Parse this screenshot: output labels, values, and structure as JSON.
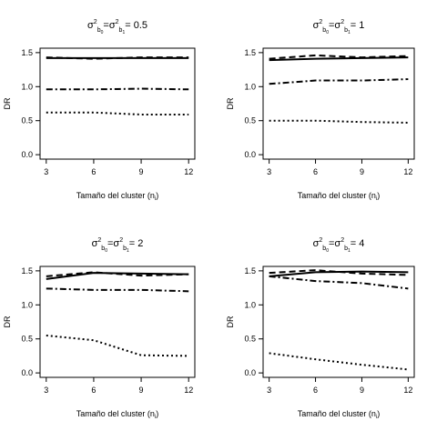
{
  "chart_data": [
    {
      "type": "line",
      "title": {
        "equals_value": "0.5"
      },
      "xlabel": "Tamaño del cluster (n",
      "xlabel_sub": "i",
      "xlabel_close": ")",
      "ylabel": "DR",
      "xlim": [
        3,
        12
      ],
      "ylim": [
        0,
        1.5
      ],
      "xticks": [
        "3",
        "6",
        "9",
        "12"
      ],
      "yticks": [
        "0.0",
        "0.5",
        "1.0",
        "1.5"
      ],
      "series": [
        {
          "style": "solid",
          "x": [
            3,
            12
          ],
          "y": [
            1.42,
            1.42
          ]
        },
        {
          "style": "dashed",
          "x": [
            3,
            6,
            9,
            12
          ],
          "y": [
            1.43,
            1.41,
            1.43,
            1.43
          ]
        },
        {
          "style": "dashdot",
          "x": [
            3,
            6,
            9,
            12
          ],
          "y": [
            0.96,
            0.96,
            0.97,
            0.96
          ]
        },
        {
          "style": "dotted",
          "x": [
            3,
            6,
            9,
            12
          ],
          "y": [
            0.62,
            0.62,
            0.59,
            0.59
          ]
        }
      ]
    },
    {
      "type": "line",
      "title": {
        "equals_value": "1"
      },
      "xlabel": "Tamaño del cluster (n",
      "xlabel_sub": "i",
      "xlabel_close": ")",
      "ylabel": "DR",
      "xlim": [
        3,
        12
      ],
      "ylim": [
        0,
        1.5
      ],
      "xticks": [
        "3",
        "6",
        "9",
        "12"
      ],
      "yticks": [
        "0.0",
        "0.5",
        "1.0",
        "1.5"
      ],
      "series": [
        {
          "style": "solid",
          "x": [
            3,
            6,
            9,
            12
          ],
          "y": [
            1.39,
            1.41,
            1.42,
            1.43
          ]
        },
        {
          "style": "dashed",
          "x": [
            3,
            6,
            9,
            12
          ],
          "y": [
            1.41,
            1.46,
            1.43,
            1.45
          ]
        },
        {
          "style": "dashdot",
          "x": [
            3,
            6,
            9,
            12
          ],
          "y": [
            1.04,
            1.09,
            1.09,
            1.11
          ]
        },
        {
          "style": "dotted",
          "x": [
            3,
            6,
            9,
            12
          ],
          "y": [
            0.5,
            0.5,
            0.48,
            0.47
          ]
        }
      ]
    },
    {
      "type": "line",
      "title": {
        "equals_value": "2"
      },
      "xlabel": "Tamaño del cluster (n",
      "xlabel_sub": "i",
      "xlabel_close": ")",
      "ylabel": "DR",
      "xlim": [
        3,
        12
      ],
      "ylim": [
        0,
        1.5
      ],
      "xticks": [
        "3",
        "6",
        "9",
        "12"
      ],
      "yticks": [
        "0.0",
        "0.5",
        "1.0",
        "1.5"
      ],
      "series": [
        {
          "style": "solid",
          "x": [
            3,
            6,
            9,
            12
          ],
          "y": [
            1.38,
            1.47,
            1.46,
            1.45
          ]
        },
        {
          "style": "dashed",
          "x": [
            3,
            6,
            9,
            12
          ],
          "y": [
            1.42,
            1.48,
            1.43,
            1.45
          ]
        },
        {
          "style": "dashdot",
          "x": [
            3,
            6,
            9,
            12
          ],
          "y": [
            1.24,
            1.22,
            1.22,
            1.2
          ]
        },
        {
          "style": "dotted",
          "x": [
            3,
            6,
            9,
            12
          ],
          "y": [
            0.55,
            0.48,
            0.26,
            0.25
          ]
        }
      ]
    },
    {
      "type": "line",
      "title": {
        "equals_value": "4"
      },
      "xlabel": "Tamaño del cluster (n",
      "xlabel_sub": "i",
      "xlabel_close": ")",
      "ylabel": "DR",
      "xlim": [
        3,
        12
      ],
      "ylim": [
        0,
        1.5
      ],
      "xticks": [
        "3",
        "6",
        "9",
        "12"
      ],
      "yticks": [
        "0.0",
        "0.5",
        "1.0",
        "1.5"
      ],
      "series": [
        {
          "style": "solid",
          "x": [
            3,
            6,
            9,
            12
          ],
          "y": [
            1.42,
            1.48,
            1.49,
            1.48
          ]
        },
        {
          "style": "dashed",
          "x": [
            3,
            6,
            9,
            12
          ],
          "y": [
            1.47,
            1.51,
            1.46,
            1.44
          ]
        },
        {
          "style": "dashdot",
          "x": [
            3,
            6,
            9,
            12
          ],
          "y": [
            1.42,
            1.35,
            1.32,
            1.24
          ]
        },
        {
          "style": "dotted",
          "x": [
            3,
            6,
            9,
            12
          ],
          "y": [
            0.29,
            0.2,
            0.12,
            0.05
          ]
        }
      ]
    }
  ]
}
